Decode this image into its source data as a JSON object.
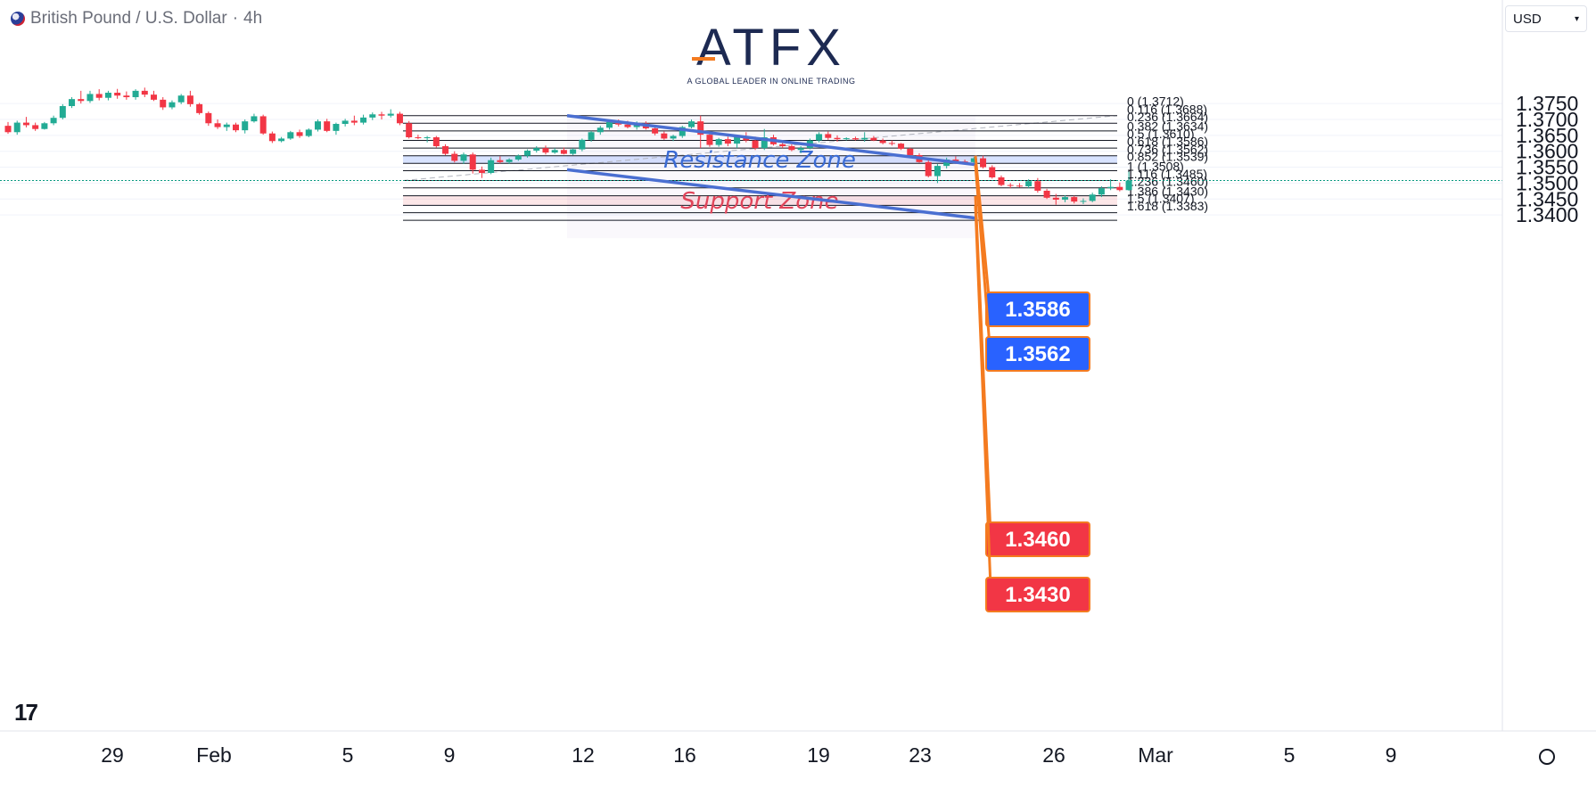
{
  "header": {
    "symbol_label": "British Pound / U.S. Dollar",
    "timeframe": "4h",
    "separator": "·"
  },
  "currency_selector": {
    "value": "USD"
  },
  "logo": {
    "brand": "ATFX",
    "tagline": "A GLOBAL LEADER IN ONLINE TRADING"
  },
  "icons": [
    "flag-icon",
    "chevron-down-icon",
    "tradingview-logo-icon",
    "settings-icon"
  ],
  "chart_data": {
    "type": "candlestick",
    "y_range": [
      1.335,
      1.3775
    ],
    "y_ticks": [
      "1.3750",
      "1.3700",
      "1.3650",
      "1.3600",
      "1.3550",
      "1.3500",
      "1.3450",
      "1.3400"
    ],
    "x_ticks": [
      "29",
      "Feb",
      "5",
      "9",
      "12",
      "16",
      "19",
      "23",
      "26",
      "Mar",
      "5",
      "9"
    ],
    "current_price": 1.3508,
    "fibonacci": {
      "levels": [
        {
          "label": "0 (1.3712)",
          "price": 1.3712
        },
        {
          "label": "0.116 (1.3688)",
          "price": 1.3688
        },
        {
          "label": "0.236 (1.3664)",
          "price": 1.3664
        },
        {
          "label": "0.382 (1.3634)",
          "price": 1.3634
        },
        {
          "label": "0.5 (1.3610)",
          "price": 1.361
        },
        {
          "label": "0.618 (1.3586)",
          "price": 1.3586
        },
        {
          "label": "0.736 (1.3562)",
          "price": 1.3562
        },
        {
          "label": "0.852 (1.3539)",
          "price": 1.3539
        },
        {
          "label": "1 (1.3508)",
          "price": 1.3508
        },
        {
          "label": "1.116 (1.3485)",
          "price": 1.3485
        },
        {
          "label": "1.236 (1.3460)",
          "price": 1.346
        },
        {
          "label": "1.386 (1.3430)",
          "price": 1.343
        },
        {
          "label": "1.5 (1.3407)",
          "price": 1.3407
        },
        {
          "label": "1.618 (1.3383)",
          "price": 1.3383
        }
      ]
    },
    "zones": [
      {
        "label": "Resistance Zone",
        "low": 1.3562,
        "high": 1.3586,
        "color": "#2962ff"
      },
      {
        "label": "Support Zone",
        "low": 1.343,
        "high": 1.346,
        "color": "#f23645"
      }
    ],
    "price_tags": [
      {
        "text": "1.3586",
        "price": 1.3586,
        "color": "#2962ff"
      },
      {
        "text": "1.3562",
        "price": 1.3562,
        "color": "#2962ff"
      },
      {
        "text": "1.3460",
        "price": 1.346,
        "color": "#f23645"
      },
      {
        "text": "1.3430",
        "price": 1.343,
        "color": "#f23645"
      }
    ],
    "channel": {
      "color": "#4a6fd1"
    },
    "colors": {
      "up": "#22ab94",
      "down": "#f23645"
    },
    "candles": [
      [
        1.368,
        1.3692,
        1.3655,
        1.366
      ],
      [
        1.366,
        1.3696,
        1.3652,
        1.369
      ],
      [
        1.369,
        1.3708,
        1.3675,
        1.3682
      ],
      [
        1.3682,
        1.369,
        1.3664,
        1.367
      ],
      [
        1.367,
        1.3692,
        1.3668,
        1.3688
      ],
      [
        1.3688,
        1.3712,
        1.3682,
        1.3705
      ],
      [
        1.3705,
        1.3748,
        1.37,
        1.3742
      ],
      [
        1.3742,
        1.377,
        1.3736,
        1.3764
      ],
      [
        1.3764,
        1.379,
        1.375,
        1.3758
      ],
      [
        1.3758,
        1.379,
        1.3752,
        1.378
      ],
      [
        1.378,
        1.3795,
        1.376,
        1.3768
      ],
      [
        1.3768,
        1.379,
        1.376,
        1.3784
      ],
      [
        1.3784,
        1.3796,
        1.3765,
        1.3775
      ],
      [
        1.3775,
        1.3788,
        1.3762,
        1.377
      ],
      [
        1.377,
        1.3795,
        1.3762,
        1.379
      ],
      [
        1.379,
        1.38,
        1.377,
        1.3778
      ],
      [
        1.3778,
        1.379,
        1.3758,
        1.3762
      ],
      [
        1.3762,
        1.377,
        1.373,
        1.3738
      ],
      [
        1.3738,
        1.376,
        1.3732,
        1.3754
      ],
      [
        1.3754,
        1.378,
        1.3748,
        1.3775
      ],
      [
        1.3775,
        1.379,
        1.374,
        1.3748
      ],
      [
        1.3748,
        1.3752,
        1.3715,
        1.372
      ],
      [
        1.372,
        1.3725,
        1.368,
        1.3688
      ],
      [
        1.3688,
        1.37,
        1.367,
        1.3676
      ],
      [
        1.3676,
        1.369,
        1.3664,
        1.3684
      ],
      [
        1.3684,
        1.369,
        1.366,
        1.3666
      ],
      [
        1.3666,
        1.37,
        1.3656,
        1.3694
      ],
      [
        1.3694,
        1.3718,
        1.369,
        1.371
      ],
      [
        1.371,
        1.3715,
        1.3652,
        1.3656
      ],
      [
        1.3656,
        1.3662,
        1.3626,
        1.3632
      ],
      [
        1.3632,
        1.3645,
        1.3628,
        1.364
      ],
      [
        1.364,
        1.3664,
        1.3636,
        1.366
      ],
      [
        1.366,
        1.3668,
        1.3642,
        1.3648
      ],
      [
        1.3648,
        1.3672,
        1.3644,
        1.3668
      ],
      [
        1.3668,
        1.37,
        1.3662,
        1.3694
      ],
      [
        1.3694,
        1.3702,
        1.366,
        1.3664
      ],
      [
        1.3664,
        1.369,
        1.3652,
        1.3686
      ],
      [
        1.3686,
        1.3702,
        1.3678,
        1.3696
      ],
      [
        1.3696,
        1.3712,
        1.3682,
        1.369
      ],
      [
        1.369,
        1.3715,
        1.3684,
        1.3706
      ],
      [
        1.3706,
        1.3722,
        1.3698,
        1.3716
      ],
      [
        1.3716,
        1.3724,
        1.37,
        1.3712
      ],
      [
        1.3712,
        1.3732,
        1.3706,
        1.3718
      ],
      [
        1.3718,
        1.3724,
        1.3682,
        1.3688
      ],
      [
        1.3688,
        1.3695,
        1.364,
        1.3644
      ],
      [
        1.3644,
        1.3652,
        1.3638,
        1.3642
      ],
      [
        1.3642,
        1.3648,
        1.3628,
        1.3644
      ],
      [
        1.3644,
        1.3648,
        1.3612,
        1.3616
      ],
      [
        1.3616,
        1.3622,
        1.3588,
        1.3592
      ],
      [
        1.3592,
        1.36,
        1.3565,
        1.357
      ],
      [
        1.357,
        1.3596,
        1.356,
        1.359
      ],
      [
        1.359,
        1.3596,
        1.353,
        1.3542
      ],
      [
        1.3542,
        1.3552,
        1.3516,
        1.3532
      ],
      [
        1.3532,
        1.358,
        1.3528,
        1.3572
      ],
      [
        1.3572,
        1.3584,
        1.3562,
        1.3566
      ],
      [
        1.3566,
        1.3578,
        1.356,
        1.3574
      ],
      [
        1.3574,
        1.359,
        1.357,
        1.3586
      ],
      [
        1.3586,
        1.3606,
        1.358,
        1.3602
      ],
      [
        1.3602,
        1.3616,
        1.3596,
        1.361
      ],
      [
        1.361,
        1.3618,
        1.359,
        1.3596
      ],
      [
        1.3596,
        1.361,
        1.3592,
        1.3604
      ],
      [
        1.3604,
        1.3612,
        1.359,
        1.3592
      ],
      [
        1.3592,
        1.361,
        1.3588,
        1.3606
      ],
      [
        1.3606,
        1.364,
        1.36,
        1.3636
      ],
      [
        1.3636,
        1.3664,
        1.363,
        1.366
      ],
      [
        1.366,
        1.368,
        1.3652,
        1.3674
      ],
      [
        1.3674,
        1.37,
        1.3668,
        1.3692
      ],
      [
        1.3692,
        1.37,
        1.3678,
        1.3684
      ],
      [
        1.3684,
        1.3696,
        1.3672,
        1.3676
      ],
      [
        1.3676,
        1.3694,
        1.3668,
        1.3688
      ],
      [
        1.3688,
        1.3694,
        1.3668,
        1.3672
      ],
      [
        1.3672,
        1.368,
        1.365,
        1.3656
      ],
      [
        1.3656,
        1.3662,
        1.3636,
        1.364
      ],
      [
        1.364,
        1.3652,
        1.3632,
        1.3648
      ],
      [
        1.3648,
        1.368,
        1.3642,
        1.3676
      ],
      [
        1.3676,
        1.37,
        1.3672,
        1.3694
      ],
      [
        1.3694,
        1.3712,
        1.361,
        1.3652
      ],
      [
        1.3652,
        1.366,
        1.3614,
        1.362
      ],
      [
        1.362,
        1.3642,
        1.3614,
        1.3638
      ],
      [
        1.3638,
        1.3646,
        1.3616,
        1.3624
      ],
      [
        1.3624,
        1.3648,
        1.361,
        1.3644
      ],
      [
        1.3644,
        1.366,
        1.3628,
        1.3634
      ],
      [
        1.3634,
        1.3646,
        1.3604,
        1.361
      ],
      [
        1.361,
        1.367,
        1.3604,
        1.3644
      ],
      [
        1.3644,
        1.3652,
        1.3618,
        1.3622
      ],
      [
        1.3622,
        1.363,
        1.361,
        1.3616
      ],
      [
        1.3616,
        1.3622,
        1.36,
        1.3604
      ],
      [
        1.3604,
        1.3616,
        1.3594,
        1.361
      ],
      [
        1.361,
        1.364,
        1.3606,
        1.3634
      ],
      [
        1.3634,
        1.366,
        1.3628,
        1.3654
      ],
      [
        1.3654,
        1.3662,
        1.3636,
        1.3642
      ],
      [
        1.3642,
        1.365,
        1.363,
        1.3638
      ],
      [
        1.3638,
        1.3644,
        1.3634,
        1.3641
      ],
      [
        1.3641,
        1.3646,
        1.3634,
        1.3637
      ],
      [
        1.3637,
        1.366,
        1.363,
        1.3642
      ],
      [
        1.3642,
        1.3648,
        1.3632,
        1.3634
      ],
      [
        1.3634,
        1.364,
        1.3622,
        1.3626
      ],
      [
        1.3626,
        1.3634,
        1.3618,
        1.3624
      ],
      [
        1.3624,
        1.3626,
        1.3604,
        1.3608
      ],
      [
        1.3608,
        1.3612,
        1.3584,
        1.3588
      ],
      [
        1.3588,
        1.3594,
        1.3564,
        1.3566
      ],
      [
        1.3566,
        1.3572,
        1.3518,
        1.3522
      ],
      [
        1.3522,
        1.356,
        1.35,
        1.3554
      ],
      [
        1.3554,
        1.358,
        1.3546,
        1.3574
      ],
      [
        1.3574,
        1.3584,
        1.356,
        1.3568
      ],
      [
        1.3568,
        1.3574,
        1.356,
        1.3566
      ],
      [
        1.3566,
        1.3582,
        1.3562,
        1.3578
      ],
      [
        1.3578,
        1.3586,
        1.3546,
        1.355
      ],
      [
        1.355,
        1.3556,
        1.3514,
        1.3518
      ],
      [
        1.3518,
        1.3524,
        1.349,
        1.3494
      ],
      [
        1.3494,
        1.35,
        1.3484,
        1.3492
      ],
      [
        1.3492,
        1.35,
        1.3486,
        1.349
      ],
      [
        1.349,
        1.3512,
        1.3484,
        1.3506
      ],
      [
        1.3506,
        1.3516,
        1.347,
        1.3476
      ],
      [
        1.3476,
        1.3482,
        1.345,
        1.3454
      ],
      [
        1.3454,
        1.3466,
        1.3432,
        1.3448
      ],
      [
        1.3448,
        1.3462,
        1.344,
        1.3456
      ],
      [
        1.3456,
        1.346,
        1.3436,
        1.3442
      ],
      [
        1.3442,
        1.3452,
        1.3434,
        1.3444
      ],
      [
        1.3444,
        1.347,
        1.344,
        1.3464
      ],
      [
        1.3464,
        1.349,
        1.3456,
        1.3484
      ],
      [
        1.3484,
        1.3512,
        1.3478,
        1.3488
      ],
      [
        1.3488,
        1.3502,
        1.3474,
        1.3478
      ],
      [
        1.3478,
        1.3536,
        1.3476,
        1.3508
      ]
    ]
  }
}
